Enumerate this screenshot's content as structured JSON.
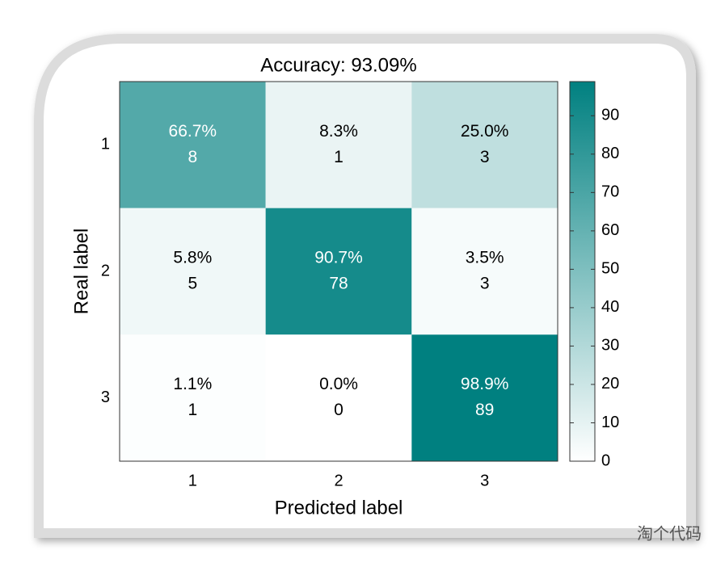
{
  "chart_data": {
    "type": "heatmap",
    "title": "Accuracy: 93.09%",
    "x_label": "Predicted label",
    "y_label": "Real label",
    "x_categories": [
      "1",
      "2",
      "3"
    ],
    "y_categories": [
      "1",
      "2",
      "3"
    ],
    "values": [
      [
        66.7,
        8.3,
        25.0
      ],
      [
        5.8,
        90.7,
        3.5
      ],
      [
        1.1,
        0,
        98.9
      ]
    ],
    "value_labels": [
      [
        "66.7%",
        "8.3%",
        "25.0%"
      ],
      [
        "5.8%",
        "90.7%",
        "3.5%"
      ],
      [
        "1.1%",
        "0.0%",
        "98.9%"
      ]
    ],
    "counts": [
      [
        8,
        1,
        3
      ],
      [
        5,
        78,
        3
      ],
      [
        1,
        0,
        89
      ]
    ],
    "colorbar": {
      "clim": [
        0,
        98.9
      ],
      "ticks": [
        0,
        10,
        20,
        30,
        40,
        50,
        60,
        70,
        80,
        90
      ],
      "colors": [
        "#ffffff",
        "#008080"
      ]
    }
  },
  "watermark": "淘个代码"
}
